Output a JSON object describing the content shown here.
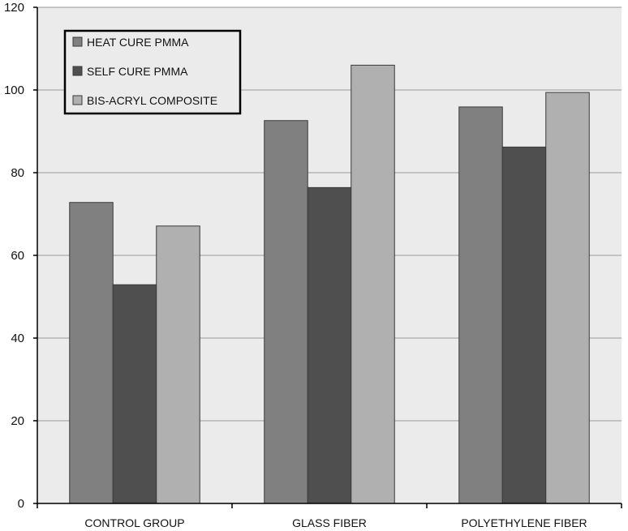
{
  "chart_data": {
    "type": "bar",
    "categories": [
      "CONTROL GROUP",
      "GLASS FIBER",
      "POLYETHYLENE FIBER"
    ],
    "series": [
      {
        "name": "HEAT CURE PMMA",
        "values": [
          72.8,
          92.6,
          95.9
        ],
        "color": "#808080"
      },
      {
        "name": "SELF CURE PMMA",
        "values": [
          52.9,
          76.4,
          86.2
        ],
        "color": "#4f4f4f"
      },
      {
        "name": "BIS-ACRYL COMPOSITE",
        "values": [
          67.1,
          106.0,
          99.4
        ],
        "color": "#b0b0b0"
      }
    ],
    "ylim": [
      0,
      120
    ],
    "yticks": [
      "0",
      "20",
      "40",
      "60",
      "80",
      "100",
      "120"
    ],
    "grid": true,
    "legend_position": "top-left",
    "colors": {
      "plot_background": "#ebebeb",
      "gridline": "#9a9a9a",
      "axis": "#000000",
      "bar_border": "#3a3a3a"
    }
  }
}
